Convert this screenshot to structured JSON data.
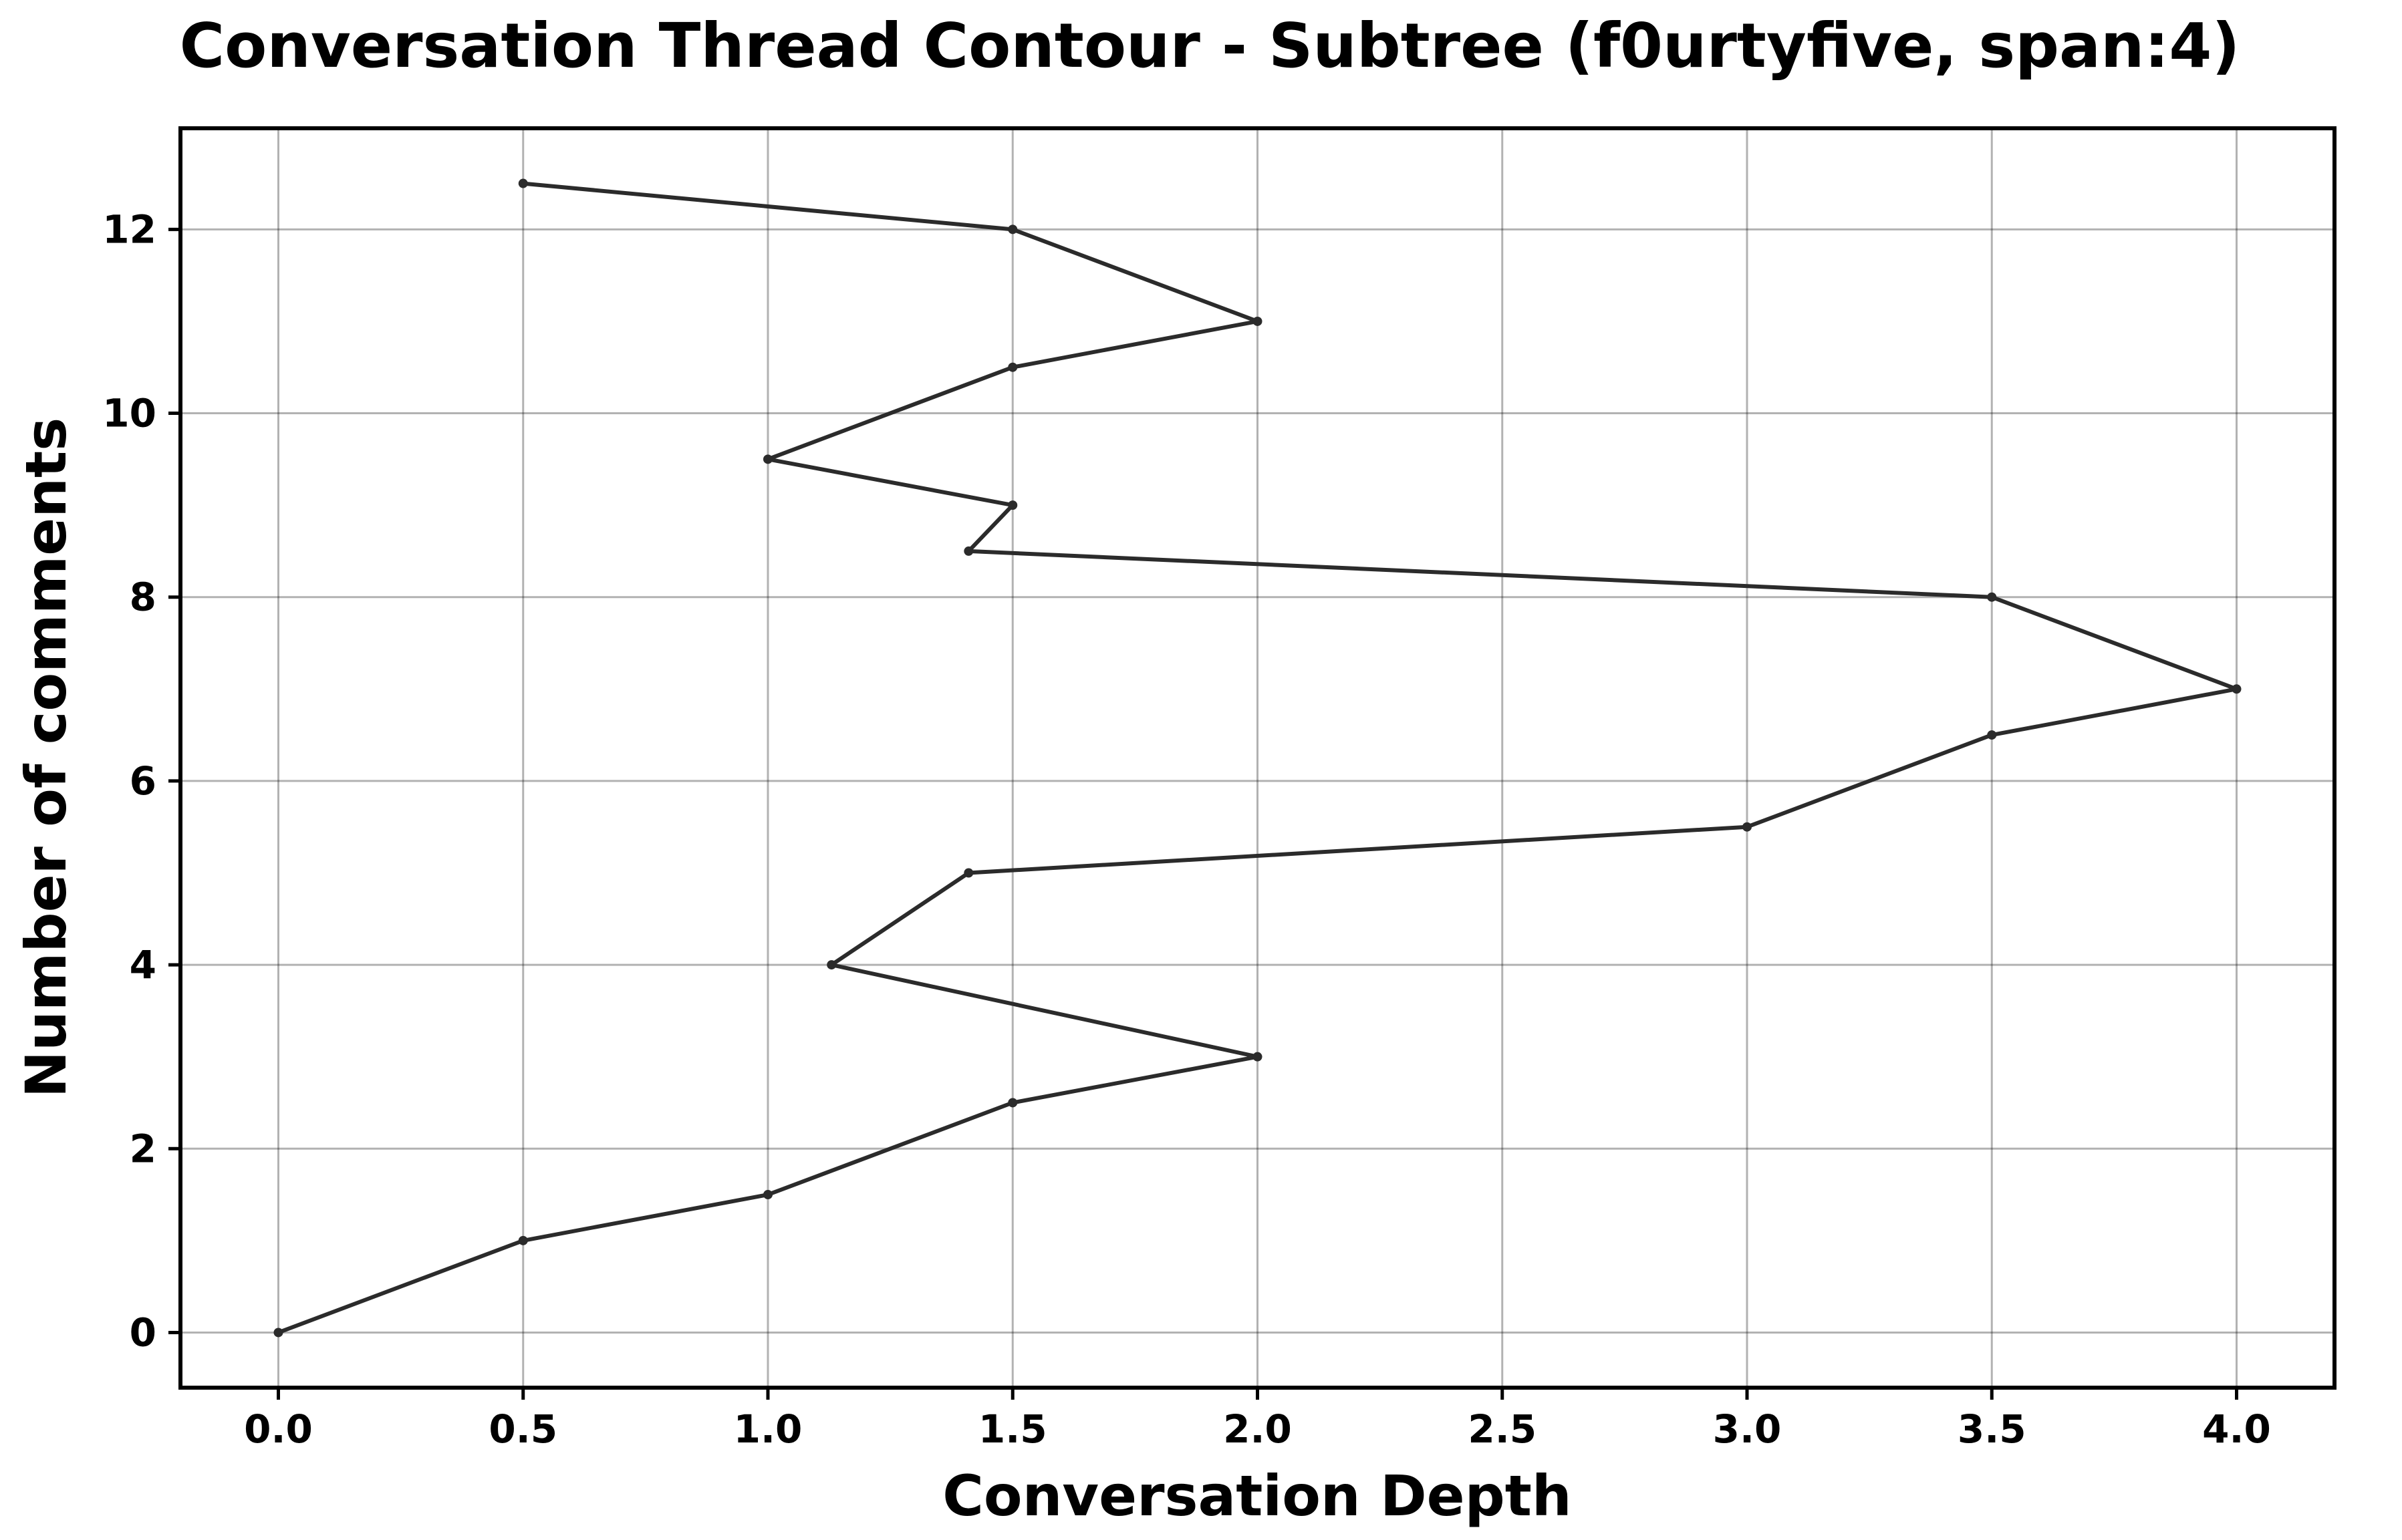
{
  "chart_data": {
    "type": "line",
    "title": "Conversation Thread Contour  - Subtree (f0urtyfive, span:4)",
    "xlabel": "Conversation Depth",
    "ylabel": "Number of comments",
    "xlim": [
      -0.2,
      4.2
    ],
    "ylim": [
      -0.6,
      13.1
    ],
    "xticks": [
      0.0,
      0.5,
      1.0,
      1.5,
      2.0,
      2.5,
      3.0,
      3.5,
      4.0
    ],
    "xtick_labels": [
      "0.0",
      "0.5",
      "1.0",
      "1.5",
      "2.0",
      "2.5",
      "3.0",
      "3.5",
      "4.0"
    ],
    "yticks": [
      0,
      2,
      4,
      6,
      8,
      10,
      12
    ],
    "ytick_labels": [
      "0",
      "2",
      "4",
      "6",
      "8",
      "10",
      "12"
    ],
    "grid": true,
    "legend": "none",
    "series": [
      {
        "color": "#2b2b2b",
        "x": [
          0.0,
          0.5,
          1.0,
          1.5,
          2.0,
          1.13,
          1.41,
          3.0,
          3.5,
          4.0,
          3.5,
          1.41,
          1.5,
          1.0,
          1.5,
          2.0,
          1.5,
          0.5
        ],
        "y": [
          0.0,
          1.0,
          1.5,
          2.5,
          3.0,
          4.0,
          5.0,
          5.5,
          6.5,
          7.0,
          8.0,
          8.5,
          9.0,
          9.5,
          10.5,
          11.0,
          12.0,
          12.5
        ]
      }
    ]
  }
}
